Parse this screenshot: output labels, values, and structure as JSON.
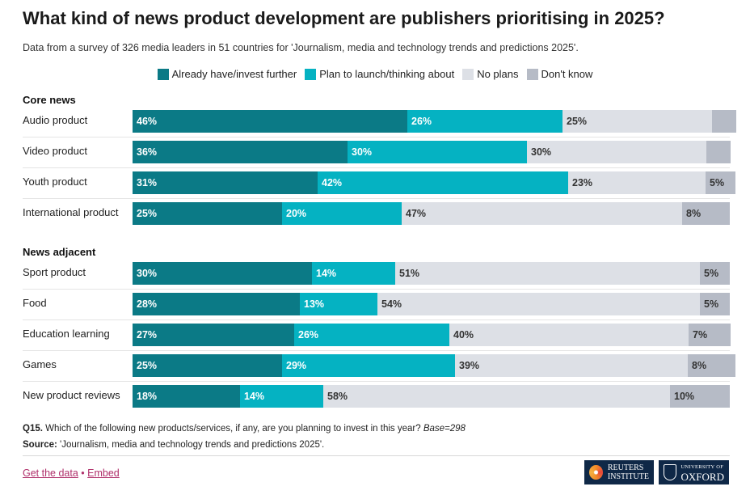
{
  "title": "What kind of news product development are publishers prioritising in 2025?",
  "subtitle": "Data from a survey of 326 media leaders in 51 countries for 'Journalism, media and technology trends and predictions 2025'.",
  "colors": {
    "already": "#0b7a86",
    "plan": "#05b2c2",
    "noplans": "#dde0e6",
    "dontknow": "#b6bbc6"
  },
  "legend": [
    "Already have/invest further",
    "Plan to launch/thinking about",
    "No plans",
    "Don't know"
  ],
  "chart_data": {
    "type": "bar",
    "orientation": "horizontal",
    "stacked": true,
    "xlim": [
      0,
      100
    ],
    "series_names": [
      "Already have/invest further",
      "Plan to launch/thinking about",
      "No plans",
      "Don't know"
    ],
    "groups": [
      {
        "name": "Core news",
        "rows": [
          {
            "label": "Audio product",
            "values": [
              46,
              26,
              25,
              4
            ],
            "labels": [
              "46%",
              "26%",
              "25%",
              ""
            ]
          },
          {
            "label": "Video product",
            "values": [
              36,
              30,
              30,
              4
            ],
            "labels": [
              "36%",
              "30%",
              "30%",
              ""
            ]
          },
          {
            "label": "Youth product",
            "values": [
              31,
              42,
              23,
              5
            ],
            "labels": [
              "31%",
              "42%",
              "23%",
              "5%"
            ]
          },
          {
            "label": "International product",
            "values": [
              25,
              20,
              47,
              8
            ],
            "labels": [
              "25%",
              "20%",
              "47%",
              "8%"
            ]
          }
        ]
      },
      {
        "name": "News adjacent",
        "rows": [
          {
            "label": "Sport product",
            "values": [
              30,
              14,
              51,
              5
            ],
            "labels": [
              "30%",
              "14%",
              "51%",
              "5%"
            ]
          },
          {
            "label": "Food",
            "values": [
              28,
              13,
              54,
              5
            ],
            "labels": [
              "28%",
              "13%",
              "54%",
              "5%"
            ]
          },
          {
            "label": "Education learning",
            "values": [
              27,
              26,
              40,
              7
            ],
            "labels": [
              "27%",
              "26%",
              "40%",
              "7%"
            ]
          },
          {
            "label": "Games",
            "values": [
              25,
              29,
              39,
              8
            ],
            "labels": [
              "25%",
              "29%",
              "39%",
              "8%"
            ]
          },
          {
            "label": "New product reviews",
            "values": [
              18,
              14,
              58,
              10
            ],
            "labels": [
              "18%",
              "14%",
              "58%",
              "10%"
            ]
          }
        ]
      }
    ]
  },
  "footnote": {
    "q_label": "Q15.",
    "q_text": " Which of the following new products/services, if any, are you planning to invest in this year? ",
    "base": "Base=298",
    "source_label": "Source:",
    "source_text": " 'Journalism, media and technology trends and predictions 2025'."
  },
  "links": {
    "get_data": "Get the data",
    "separator": " • ",
    "embed": "Embed"
  },
  "logos": {
    "reuters_line1": "REUTERS",
    "reuters_line2": "INSTITUTE",
    "oxford_line1": "UNIVERSITY OF",
    "oxford_line2": "OXFORD"
  }
}
